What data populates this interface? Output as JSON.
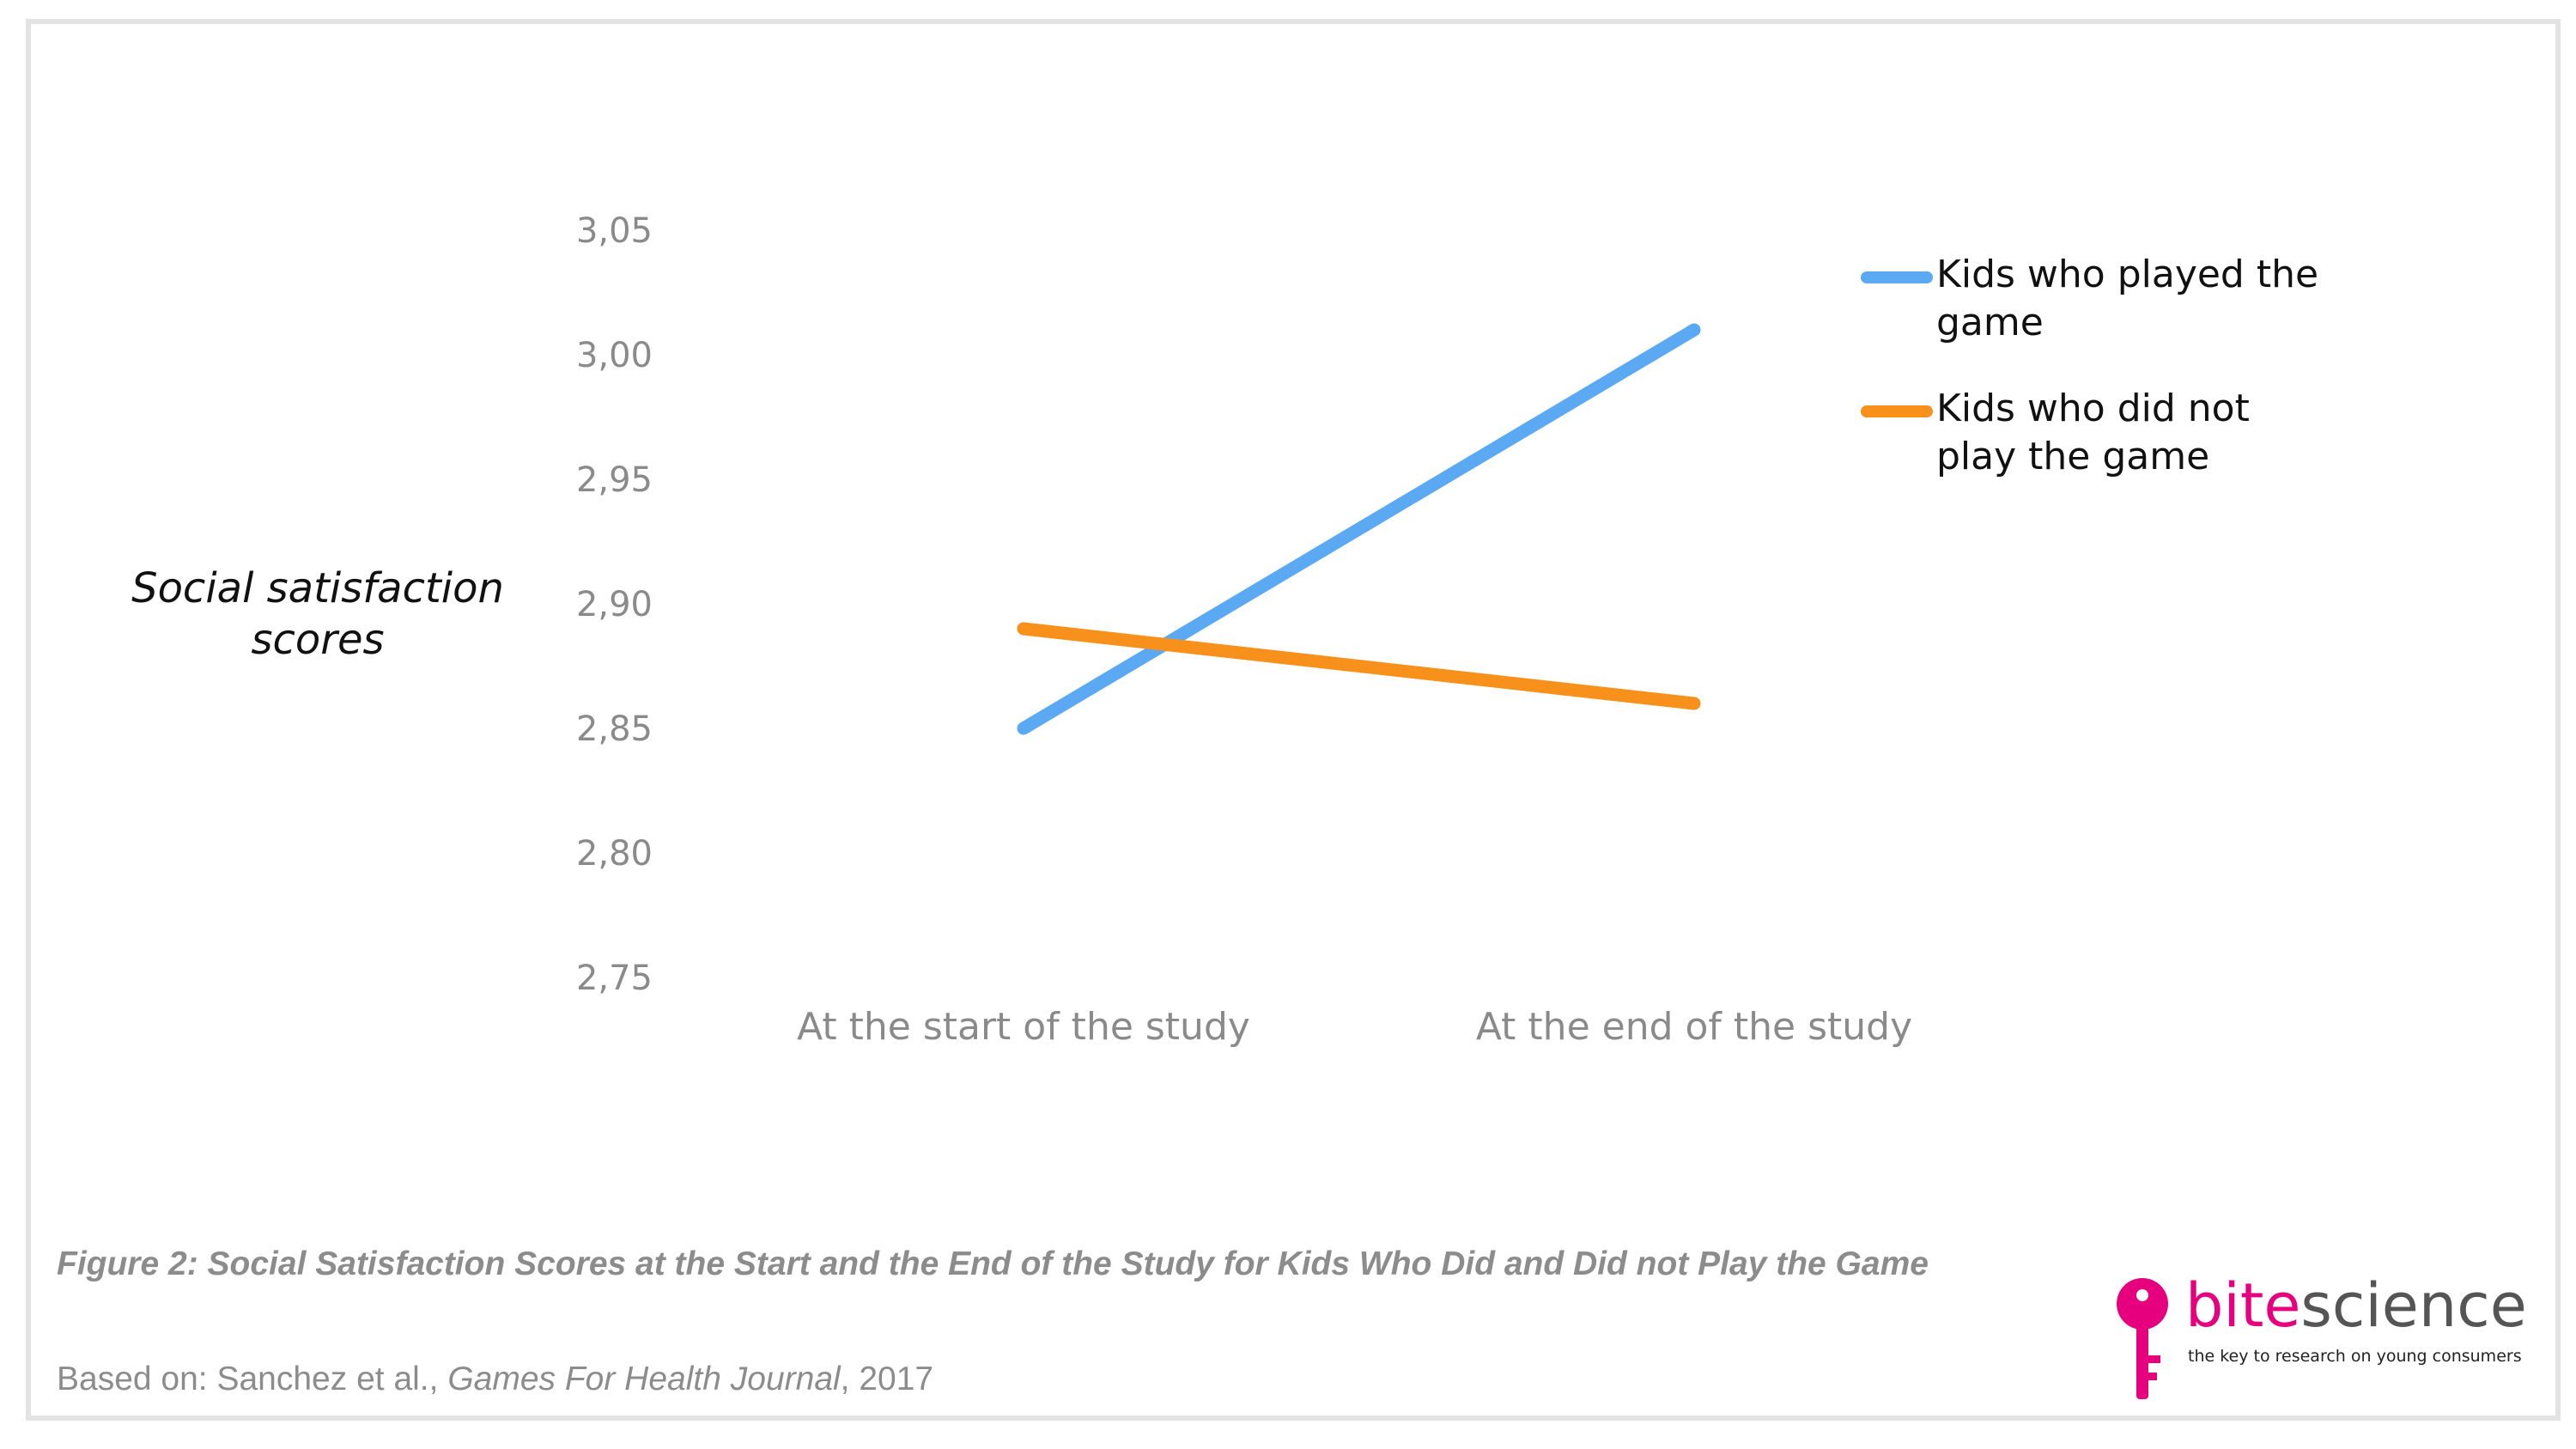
{
  "chart_data": {
    "type": "line",
    "categories": [
      "At the start of the study",
      "At the end of the study"
    ],
    "series": [
      {
        "name": "Kids who played the game",
        "values": [
          2.85,
          3.01
        ],
        "color": "#5aa9f2"
      },
      {
        "name": "Kids who did not play the game",
        "values": [
          2.89,
          2.86
        ],
        "color": "#f7911c"
      }
    ],
    "yticks": [
      "3,05",
      "3,00",
      "2,95",
      "2,90",
      "2,85",
      "2,80",
      "2,75"
    ],
    "ylim": [
      2.75,
      3.05
    ],
    "ylabel": "Social satisfaction scores",
    "grid": false,
    "legend_position": "top-right"
  },
  "legend": {
    "item1_line1": "Kids who played the",
    "item1_line2": "game",
    "item2_line1": "Kids who did not",
    "item2_line2": "play the game"
  },
  "ylabel_line1": "Social satisfaction",
  "ylabel_line2": "scores",
  "caption": "Figure 2: Social Satisfaction Scores at the Start and the End of the Study for Kids Who Did and Did not Play the Game",
  "source": {
    "prefix": "Based on: Sanchez et al., ",
    "journal": "Games For Health Journal",
    "year": ", 2017"
  },
  "logo": {
    "bite": "bite",
    "science": "science",
    "tagline": "the key to research on young consumers",
    "accent_color": "#e6007e"
  }
}
